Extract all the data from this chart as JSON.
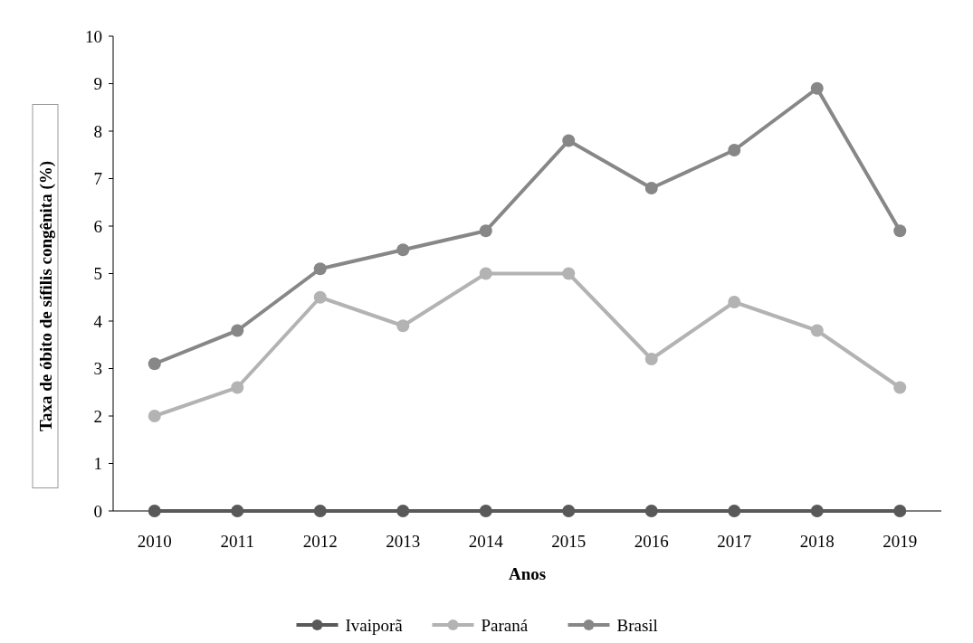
{
  "chart_data": {
    "type": "line",
    "xlabel": "Anos",
    "ylabel": "Taxa de óbito de sífilis congênita (%)",
    "categories": [
      "2010",
      "2011",
      "2012",
      "2013",
      "2014",
      "2015",
      "2016",
      "2017",
      "2018",
      "2019"
    ],
    "series": [
      {
        "name": "Ivaiporã",
        "color": "#595959",
        "values": [
          0,
          0,
          0,
          0,
          0,
          0,
          0,
          0,
          0,
          0
        ]
      },
      {
        "name": "Paraná",
        "color": "#b3b3b3",
        "values": [
          2.0,
          2.6,
          4.5,
          3.9,
          5.0,
          5.0,
          3.2,
          4.4,
          3.8,
          2.6
        ]
      },
      {
        "name": "Brasil",
        "color": "#878787",
        "values": [
          3.1,
          3.8,
          5.1,
          5.5,
          5.9,
          7.8,
          6.8,
          7.6,
          8.9,
          5.9
        ]
      }
    ],
    "ylim": [
      0,
      10
    ],
    "yticks": [
      0,
      1,
      2,
      3,
      4,
      5,
      6,
      7,
      8,
      9,
      10
    ],
    "grid": false,
    "legend": "bottom",
    "marker": "circle",
    "line_style": "solid"
  }
}
